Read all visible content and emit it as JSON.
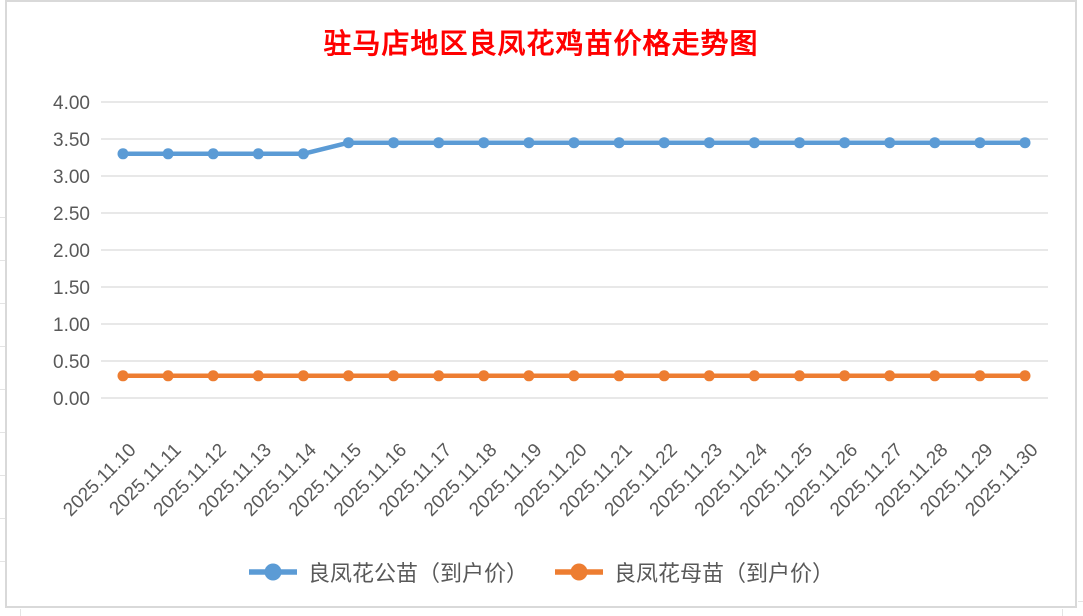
{
  "chart_data": {
    "type": "line",
    "title": "驻马店地区良凤花鸡苗价格走势图",
    "title_color": "#FF0000",
    "categories": [
      "2025.11.10",
      "2025.11.11",
      "2025.11.12",
      "2025.11.13",
      "2025.11.14",
      "2025.11.15",
      "2025.11.16",
      "2025.11.17",
      "2025.11.18",
      "2025.11.19",
      "2025.11.20",
      "2025.11.21",
      "2025.11.22",
      "2025.11.23",
      "2025.11.24",
      "2025.11.25",
      "2025.11.26",
      "2025.11.27",
      "2025.11.28",
      "2025.11.29",
      "2025.11.30"
    ],
    "series": [
      {
        "name": "良凤花公苗（到户价）",
        "color": "#5B9BD5",
        "marker": "circle",
        "values": [
          3.3,
          3.3,
          3.3,
          3.3,
          3.3,
          3.45,
          3.45,
          3.45,
          3.45,
          3.45,
          3.45,
          3.45,
          3.45,
          3.45,
          3.45,
          3.45,
          3.45,
          3.45,
          3.45,
          3.45,
          3.45
        ]
      },
      {
        "name": "良凤花母苗（到户价）",
        "color": "#ED7D31",
        "marker": "circle",
        "values": [
          0.3,
          0.3,
          0.3,
          0.3,
          0.3,
          0.3,
          0.3,
          0.3,
          0.3,
          0.3,
          0.3,
          0.3,
          0.3,
          0.3,
          0.3,
          0.3,
          0.3,
          0.3,
          0.3,
          0.3,
          0.3
        ]
      }
    ],
    "ylim": [
      0,
      4
    ],
    "ytick_step": 0.5,
    "ytick_labels": [
      "0.00",
      "0.50",
      "1.00",
      "1.50",
      "2.00",
      "2.50",
      "3.00",
      "3.50",
      "4.00"
    ],
    "xlabel": "",
    "ylabel": "",
    "grid": "horizontal-only",
    "gridline_color": "#D9D9D9",
    "axis_text_color": "#595959",
    "legend_position": "bottom",
    "x_label_rotation_deg": 45
  }
}
